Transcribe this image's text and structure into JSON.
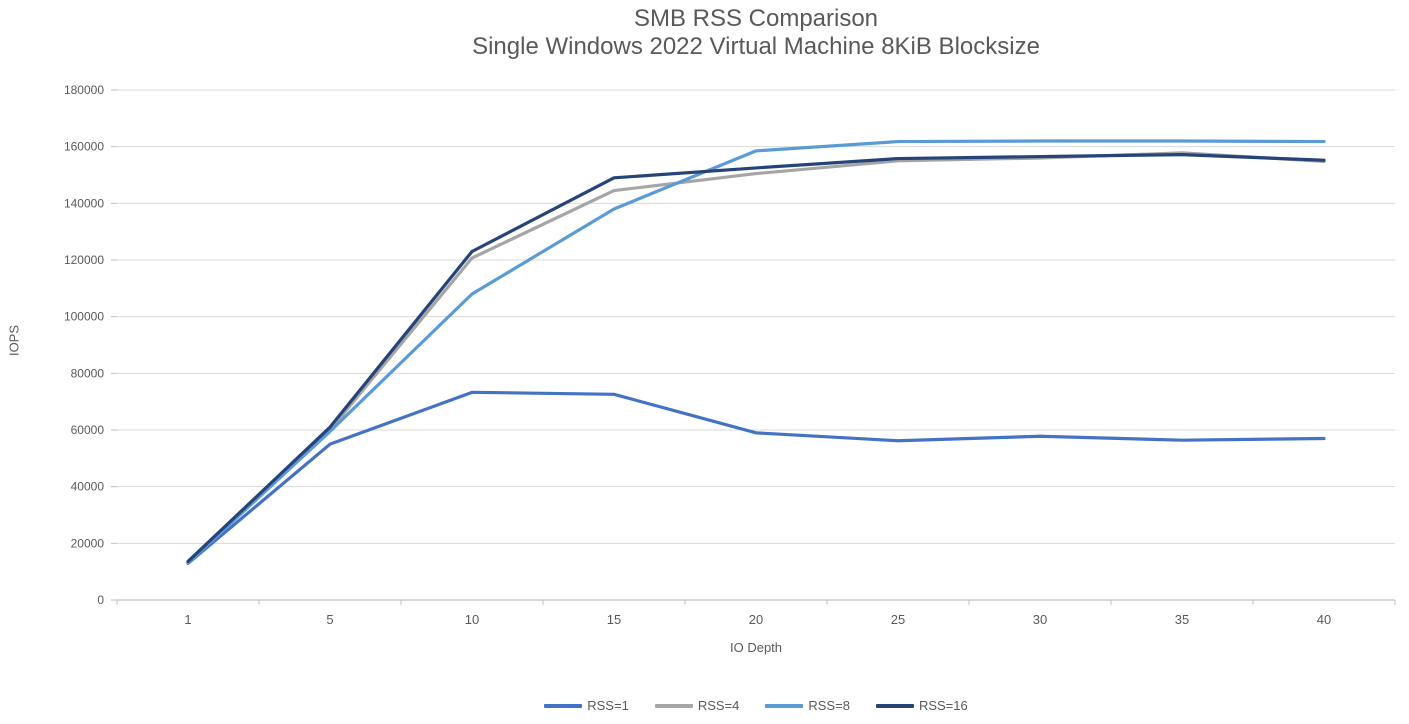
{
  "title": {
    "line1": "SMB RSS Comparison",
    "line2": "Single Windows 2022 Virtual Machine 8KiB Blocksize"
  },
  "chart_data": {
    "type": "line",
    "title": "SMB RSS Comparison — Single Windows 2022 Virtual Machine 8KiB Blocksize",
    "xlabel": "IO Depth",
    "ylabel": "IOPS",
    "categories": [
      1,
      5,
      10,
      15,
      20,
      25,
      30,
      35,
      40
    ],
    "series": [
      {
        "name": "RSS=1",
        "color": "#4472C4",
        "values": [
          12900,
          55000,
          73300,
          72600,
          59000,
          56200,
          57800,
          56400,
          57000
        ]
      },
      {
        "name": "RSS=4",
        "color": "#A5A5A5",
        "values": [
          13300,
          60000,
          120700,
          144500,
          150500,
          155000,
          156000,
          157800,
          154800
        ]
      },
      {
        "name": "RSS=8",
        "color": "#5B9BD5",
        "values": [
          13100,
          59500,
          108000,
          138000,
          158500,
          161800,
          162000,
          162000,
          161800
        ]
      },
      {
        "name": "RSS=16",
        "color": "#264478",
        "values": [
          13600,
          61000,
          123000,
          149000,
          152500,
          155800,
          156500,
          157200,
          155200
        ]
      }
    ],
    "ylim": [
      0,
      180000
    ],
    "ytick_step": 20000,
    "grid": true,
    "legend_position": "bottom"
  },
  "style_colors": {
    "gridline": "#D9D9D9",
    "axis_line": "#BFBFBF",
    "text": "#595959"
  }
}
